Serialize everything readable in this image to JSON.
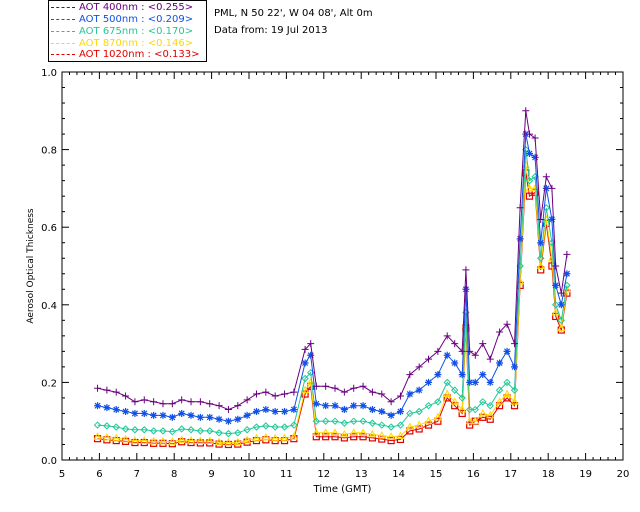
{
  "header": {
    "station": "PML, N 50 22', W 04 08', Alt 0m",
    "date": "Data from: 19 Jul 2013"
  },
  "legend": [
    {
      "label": "AOT  400nm : <0.255>",
      "color": "#6a0080"
    },
    {
      "label": "AOT  500nm : <0.209>",
      "color": "#1050e8"
    },
    {
      "label": "AOT  675nm : <0.170>",
      "color": "#20c898"
    },
    {
      "label": "AOT  870nm : <0.146>",
      "color": "#ffd800"
    },
    {
      "label": "AOT 1020nm : <0.133>",
      "color": "#e00000"
    }
  ],
  "chart_data": {
    "type": "line",
    "title": "",
    "xlabel": "Time (GMT)",
    "ylabel": "Aerosol Optical Thickness",
    "xlim": [
      5,
      20
    ],
    "ylim": [
      0.0,
      1.0
    ],
    "xticks": [
      "5",
      "6",
      "7",
      "8",
      "9",
      "10",
      "11",
      "12",
      "13",
      "14",
      "15",
      "16",
      "17",
      "18",
      "19",
      "20"
    ],
    "yticks": [
      "0.0",
      "0.2",
      "0.4",
      "0.6",
      "0.8",
      "1.0"
    ],
    "x": [
      5.95,
      6.2,
      6.45,
      6.7,
      6.95,
      7.2,
      7.45,
      7.7,
      7.95,
      8.2,
      8.45,
      8.7,
      8.95,
      9.2,
      9.45,
      9.7,
      9.95,
      10.2,
      10.45,
      10.7,
      10.95,
      11.2,
      11.5,
      11.65,
      11.8,
      12.05,
      12.3,
      12.55,
      12.8,
      13.05,
      13.3,
      13.55,
      13.8,
      14.05,
      14.3,
      14.55,
      14.8,
      15.05,
      15.3,
      15.5,
      15.7,
      15.8,
      15.9,
      16.05,
      16.25,
      16.45,
      16.7,
      16.9,
      17.1,
      17.25,
      17.4,
      17.5,
      17.65,
      17.8,
      17.95,
      18.1,
      18.2,
      18.35,
      18.5
    ],
    "series": [
      {
        "name": "AOT  400nm",
        "color": "#6a0080",
        "marker": "plus",
        "values": [
          0.185,
          0.18,
          0.175,
          0.165,
          0.15,
          0.155,
          0.15,
          0.145,
          0.145,
          0.155,
          0.15,
          0.15,
          0.145,
          0.14,
          0.13,
          0.14,
          0.155,
          0.17,
          0.175,
          0.165,
          0.17,
          0.175,
          0.285,
          0.3,
          0.19,
          0.19,
          0.185,
          0.175,
          0.185,
          0.19,
          0.175,
          0.17,
          0.15,
          0.165,
          0.22,
          0.24,
          0.26,
          0.28,
          0.32,
          0.3,
          0.28,
          0.49,
          0.28,
          0.27,
          0.3,
          0.26,
          0.33,
          0.35,
          0.3,
          0.65,
          0.9,
          0.84,
          0.83,
          0.62,
          0.73,
          0.7,
          0.5,
          0.43,
          0.53
        ]
      },
      {
        "name": "AOT  500nm",
        "color": "#1050e8",
        "marker": "star",
        "values": [
          0.14,
          0.135,
          0.13,
          0.125,
          0.12,
          0.12,
          0.115,
          0.115,
          0.11,
          0.12,
          0.115,
          0.11,
          0.11,
          0.105,
          0.1,
          0.105,
          0.115,
          0.125,
          0.13,
          0.125,
          0.125,
          0.13,
          0.25,
          0.27,
          0.145,
          0.14,
          0.14,
          0.13,
          0.14,
          0.14,
          0.13,
          0.125,
          0.115,
          0.125,
          0.17,
          0.18,
          0.2,
          0.22,
          0.27,
          0.25,
          0.22,
          0.44,
          0.2,
          0.2,
          0.22,
          0.2,
          0.25,
          0.28,
          0.24,
          0.57,
          0.84,
          0.79,
          0.78,
          0.56,
          0.7,
          0.62,
          0.45,
          0.4,
          0.48
        ]
      },
      {
        "name": "AOT  675nm",
        "color": "#20c898",
        "marker": "diamond",
        "values": [
          0.09,
          0.088,
          0.085,
          0.08,
          0.078,
          0.078,
          0.075,
          0.075,
          0.073,
          0.08,
          0.078,
          0.075,
          0.075,
          0.07,
          0.068,
          0.07,
          0.078,
          0.085,
          0.088,
          0.085,
          0.085,
          0.09,
          0.21,
          0.225,
          0.1,
          0.1,
          0.1,
          0.095,
          0.1,
          0.1,
          0.095,
          0.09,
          0.085,
          0.09,
          0.12,
          0.125,
          0.14,
          0.15,
          0.2,
          0.18,
          0.16,
          0.38,
          0.13,
          0.13,
          0.15,
          0.14,
          0.18,
          0.2,
          0.18,
          0.5,
          0.8,
          0.72,
          0.73,
          0.52,
          0.65,
          0.56,
          0.4,
          0.36,
          0.45
        ]
      },
      {
        "name": "AOT  870nm",
        "color": "#ffd800",
        "marker": "triangle",
        "values": [
          0.06,
          0.058,
          0.056,
          0.053,
          0.05,
          0.05,
          0.048,
          0.048,
          0.047,
          0.052,
          0.05,
          0.049,
          0.049,
          0.046,
          0.045,
          0.046,
          0.051,
          0.056,
          0.058,
          0.056,
          0.056,
          0.06,
          0.18,
          0.2,
          0.07,
          0.07,
          0.07,
          0.066,
          0.07,
          0.07,
          0.066,
          0.063,
          0.06,
          0.062,
          0.085,
          0.09,
          0.1,
          0.11,
          0.17,
          0.15,
          0.13,
          0.35,
          0.1,
          0.1,
          0.12,
          0.115,
          0.15,
          0.17,
          0.15,
          0.46,
          0.76,
          0.7,
          0.7,
          0.5,
          0.62,
          0.52,
          0.38,
          0.34,
          0.44
        ]
      },
      {
        "name": "AOT 1020nm",
        "color": "#e00000",
        "marker": "square",
        "values": [
          0.055,
          0.052,
          0.05,
          0.048,
          0.045,
          0.045,
          0.043,
          0.043,
          0.042,
          0.047,
          0.045,
          0.044,
          0.044,
          0.041,
          0.04,
          0.041,
          0.046,
          0.05,
          0.052,
          0.05,
          0.05,
          0.055,
          0.17,
          0.19,
          0.06,
          0.06,
          0.06,
          0.057,
          0.06,
          0.06,
          0.057,
          0.054,
          0.05,
          0.053,
          0.075,
          0.08,
          0.09,
          0.1,
          0.16,
          0.14,
          0.12,
          0.34,
          0.09,
          0.1,
          0.11,
          0.105,
          0.14,
          0.16,
          0.14,
          0.45,
          0.74,
          0.68,
          0.69,
          0.49,
          0.61,
          0.5,
          0.37,
          0.335,
          0.43
        ]
      }
    ]
  }
}
